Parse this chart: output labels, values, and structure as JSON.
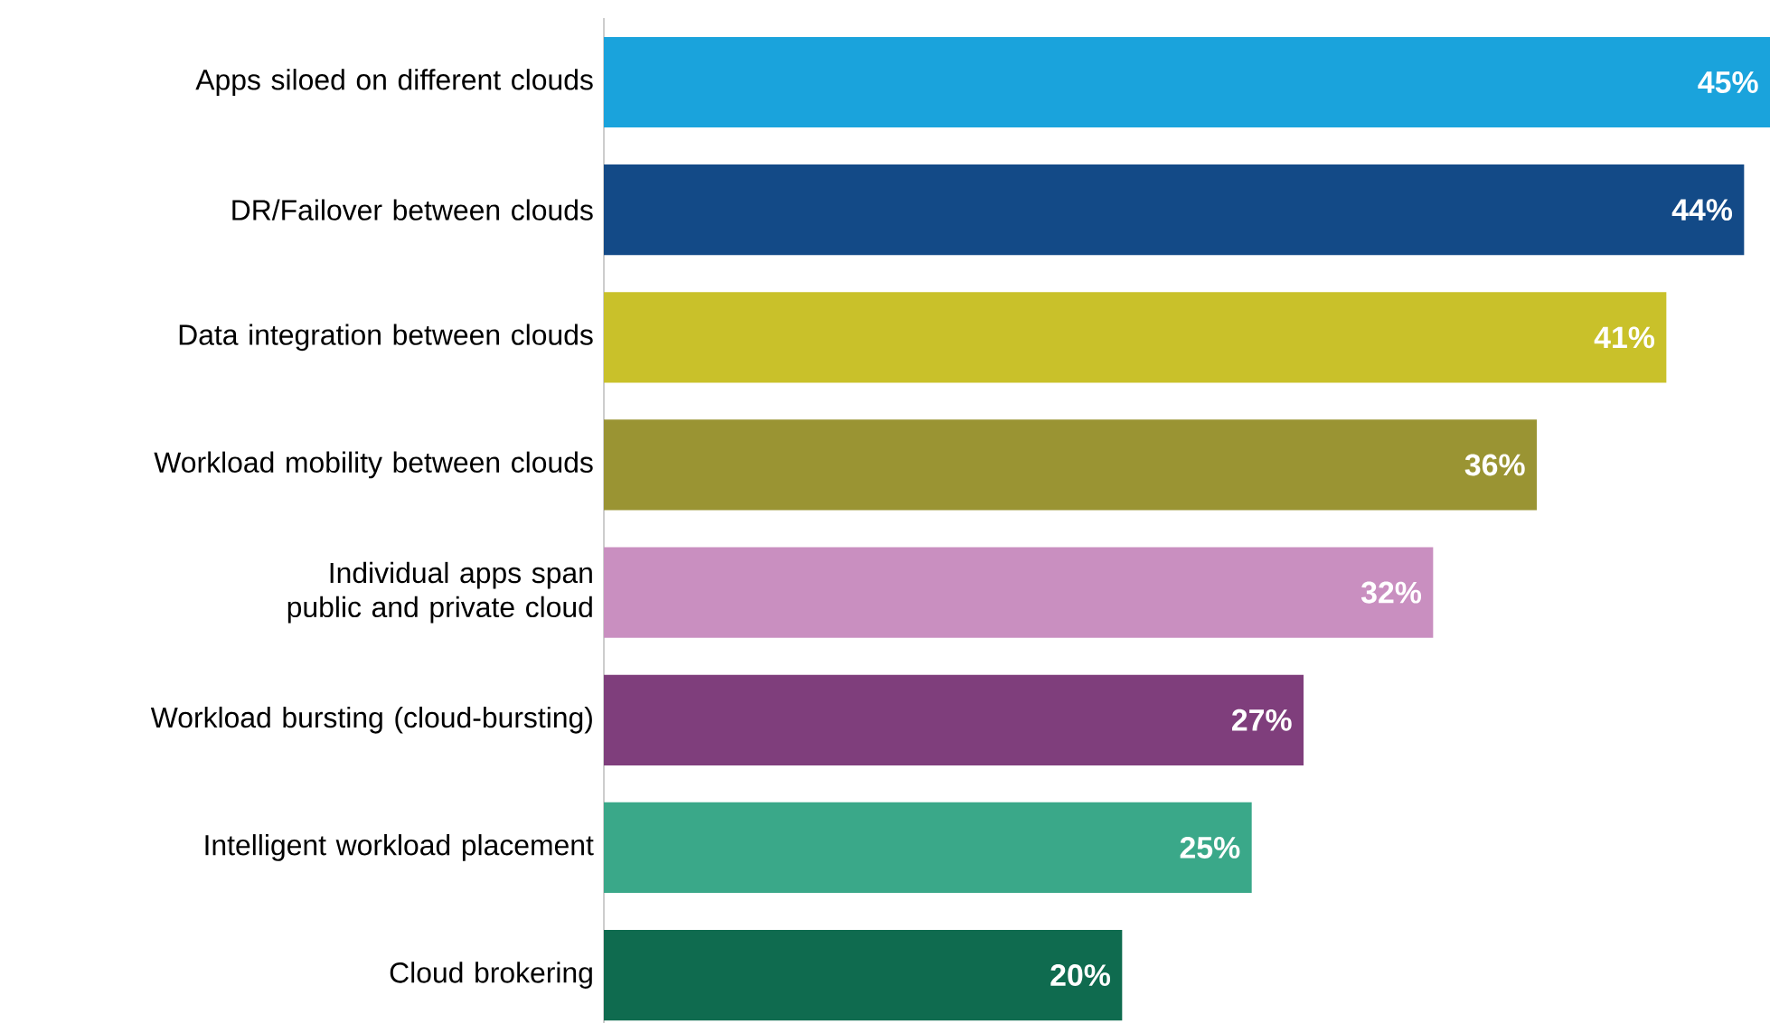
{
  "chart_data": {
    "type": "bar",
    "orientation": "horizontal",
    "tick_labels": "y",
    "categories": [
      "Apps siloed on different clouds",
      "DR/Failover between clouds",
      "Data integration between clouds",
      "Workload mobility between clouds",
      "Individual apps span public and private cloud",
      "Workload bursting (cloud-bursting)",
      "Intelligent workload placement",
      "Cloud brokering"
    ],
    "values": [
      45,
      44,
      41,
      36,
      32,
      27,
      25,
      20
    ],
    "value_labels": [
      "45%",
      "44%",
      "41%",
      "36%",
      "32%",
      "27%",
      "25%",
      "20%"
    ],
    "colors": [
      "#1aa3dc",
      "#134a87",
      "#c9c12a",
      "#9a9433",
      "#c98fc0",
      "#7f3e7c",
      "#3aa889",
      "#0f6b4f"
    ]
  }
}
